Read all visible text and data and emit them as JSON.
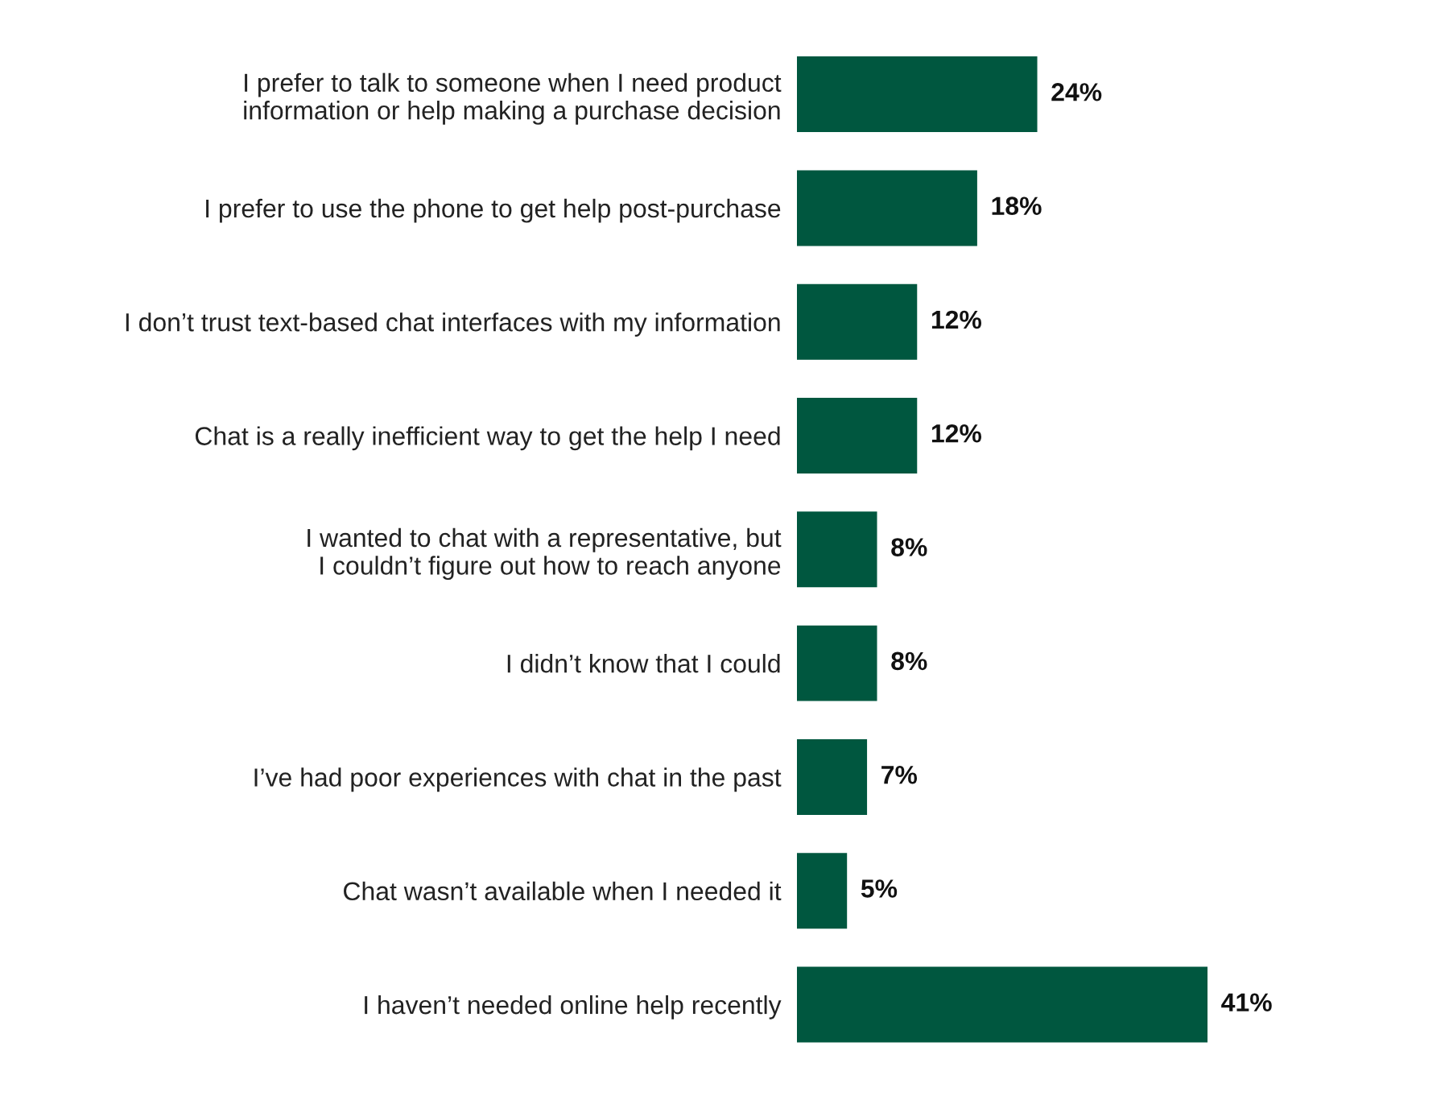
{
  "chart_data": {
    "type": "bar",
    "orientation": "horizontal",
    "categories": [
      "I prefer to talk to someone when I need product\ninformation or help making a purchase decision",
      "I prefer to use the phone to get help post-purchase",
      "I don’t trust text-based chat interfaces with my information",
      "Chat is a really inefficient way to get the help I need",
      "I wanted to chat with a representative, but\nI couldn’t figure out how to reach anyone",
      "I didn’t know that I could",
      "I’ve had poor experiences with chat in the past",
      "Chat wasn’t available when I needed it",
      "I haven’t needed online help recently"
    ],
    "values": [
      24,
      18,
      12,
      12,
      8,
      8,
      7,
      5,
      41
    ],
    "value_labels": [
      "24%",
      "18%",
      "12%",
      "12%",
      "8%",
      "8%",
      "7%",
      "5%",
      "41%"
    ],
    "color": "#00573f",
    "tick_labels": "y"
  }
}
